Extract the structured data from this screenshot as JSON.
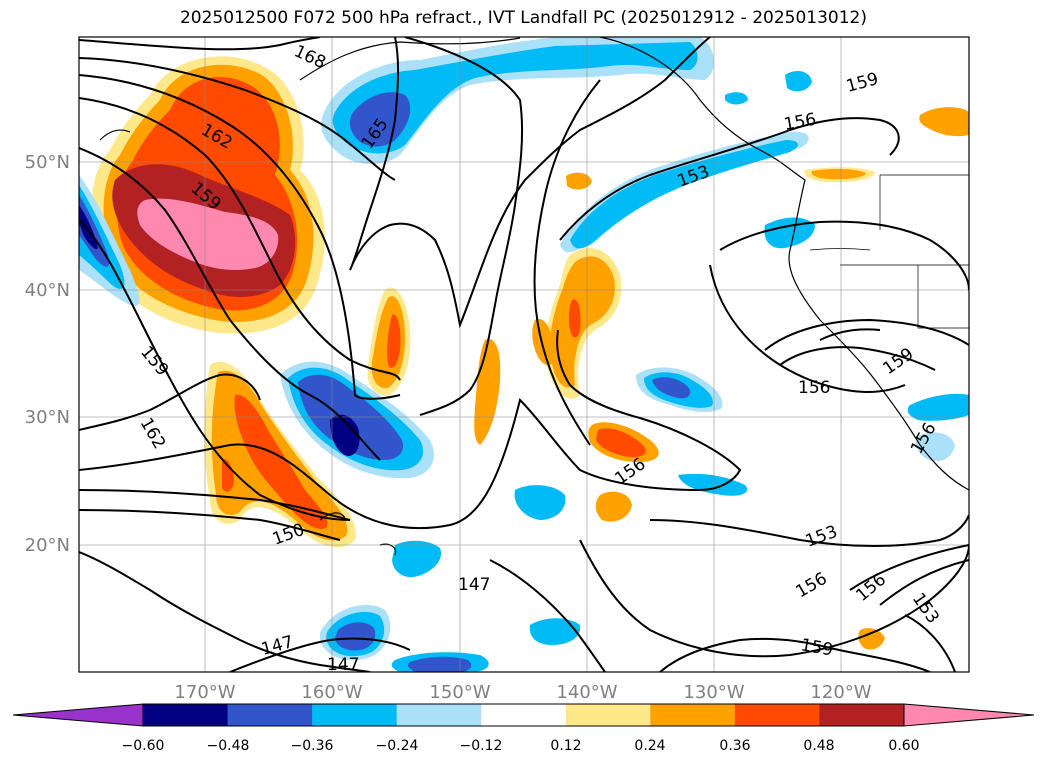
{
  "title": "2025012500 F072 500 hPa refract., IVT Landfall PC (2025012912 - 2025013012)",
  "lat_labels": [
    "50°N",
    "40°N",
    "30°N",
    "20°N"
  ],
  "lon_labels": [
    "170°W",
    "160°W",
    "150°W",
    "140°W",
    "130°W",
    "120°W"
  ],
  "contour_labels": [
    "168",
    "165",
    "162",
    "159",
    "159",
    "162",
    "159",
    "156",
    "153",
    "156",
    "159",
    "156",
    "150",
    "147",
    "147",
    "147",
    "153",
    "156",
    "156",
    "153",
    "159",
    "156"
  ],
  "colorbar": {
    "ticks": [
      "−0.60",
      "−0.48",
      "−0.36",
      "−0.24",
      "−0.12",
      "0.12",
      "0.24",
      "0.36",
      "0.48",
      "0.60"
    ],
    "colors": [
      "#9933cc",
      "#000080",
      "#3355cc",
      "#00bbf5",
      "#aae0f8",
      "#ffffff",
      "#ffe88a",
      "#ffa200",
      "#ff4a00",
      "#b22222",
      "#ff88b0"
    ]
  }
}
